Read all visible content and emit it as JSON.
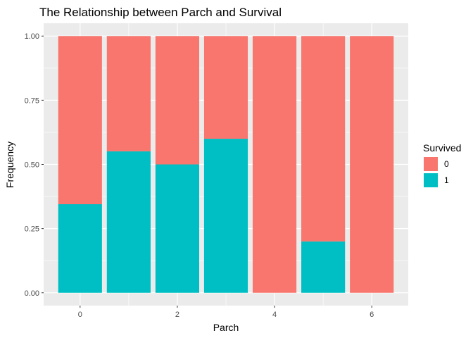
{
  "chart_data": {
    "type": "bar",
    "stacked": true,
    "title": "The Relationship between Parch and Survival",
    "xlabel": "Parch",
    "ylabel": "Frequency",
    "x": [
      0,
      1,
      2,
      3,
      4,
      5,
      6
    ],
    "x_ticks": [
      0,
      2,
      4,
      6
    ],
    "xlim": [
      -0.75,
      6.75
    ],
    "ylim": [
      -0.05,
      1.05
    ],
    "y_ticks": [
      "0.00",
      "0.25",
      "0.50",
      "0.75",
      "1.00"
    ],
    "y_tick_values": [
      0,
      0.25,
      0.5,
      0.75,
      1.0
    ],
    "series": [
      {
        "name": "0",
        "values": [
          0.655,
          0.449,
          0.5,
          0.4,
          1.0,
          0.8,
          1.0
        ],
        "color": "#F8766D"
      },
      {
        "name": "1",
        "values": [
          0.345,
          0.551,
          0.5,
          0.6,
          0.0,
          0.2,
          0.0
        ],
        "color": "#00BFC4"
      }
    ],
    "grid": true,
    "legend": {
      "title": "Survived",
      "position": "right"
    },
    "panel_background": "#EBEBEB",
    "grid_color": "#FFFFFF"
  }
}
